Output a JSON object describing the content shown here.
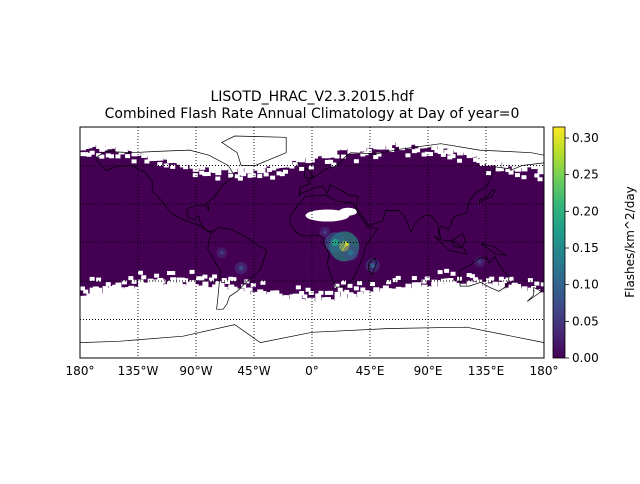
{
  "title": {
    "line1": "LISOTD_HRAC_V2.3.2015.hdf",
    "line2": "Combined Flash Rate Annual Climatology at Day of year=0"
  },
  "map": {
    "projection": "cylindrical",
    "lon_range": [
      -180,
      180
    ],
    "lat_range": [
      -90,
      90
    ],
    "meridian_labels": [
      "180°",
      "135°W",
      "90°W",
      "45°W",
      "0°",
      "45°E",
      "90°E",
      "135°E",
      "180°"
    ],
    "meridian_values": [
      -180,
      -135,
      -90,
      -45,
      0,
      45,
      90,
      135,
      180
    ],
    "parallel_values": [
      -60,
      -30,
      0,
      30,
      60
    ],
    "grid_style": "dotted",
    "background_color": "#440154",
    "missing_color": "#ffffff",
    "hotspots": [
      {
        "lon": 25,
        "lat": -3,
        "value": 0.3
      },
      {
        "lon": 18,
        "lat": 0,
        "value": 0.18
      },
      {
        "lon": 30,
        "lat": -8,
        "value": 0.12
      },
      {
        "lon": -55,
        "lat": -20,
        "value": 0.08
      },
      {
        "lon": -70,
        "lat": -8,
        "value": 0.06
      },
      {
        "lon": 130,
        "lat": -15,
        "value": 0.06
      },
      {
        "lon": 10,
        "lat": 8,
        "value": 0.06
      },
      {
        "lon": 47,
        "lat": -18,
        "value": 0.1
      }
    ]
  },
  "colorbar": {
    "label": "Flashes/km^2/day",
    "vmin": 0,
    "vmax": 0.315,
    "ticks": [
      "0.00",
      "0.05",
      "0.10",
      "0.15",
      "0.20",
      "0.25",
      "0.30"
    ],
    "tick_values": [
      0,
      0.05,
      0.1,
      0.15,
      0.2,
      0.25,
      0.3
    ],
    "colormap": "viridis",
    "stops": [
      "#440154",
      "#482878",
      "#3e4a89",
      "#31688e",
      "#26828e",
      "#1f9e89",
      "#35b779",
      "#6ece58",
      "#b5de2b",
      "#fde725"
    ]
  }
}
